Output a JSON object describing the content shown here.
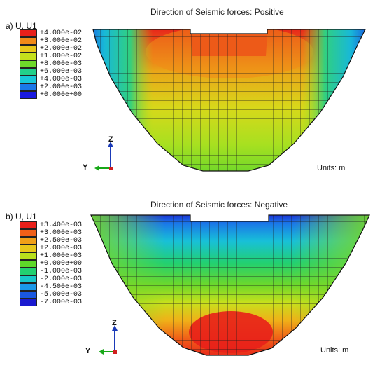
{
  "panels": [
    {
      "label": "a)  U, U1",
      "title": "Direction of Seismic forces: Positive",
      "units": "Units: m",
      "legend": [
        {
          "text": "+4.000e-02",
          "color": "#e8201a"
        },
        {
          "text": "+3.000e-02",
          "color": "#f08a18"
        },
        {
          "text": "+2.000e-02",
          "color": "#e8c81a"
        },
        {
          "text": "+1.000e-02",
          "color": "#c4e01c"
        },
        {
          "text": "+8.000e-03",
          "color": "#6ed82a"
        },
        {
          "text": "+6.000e-03",
          "color": "#22d08a"
        },
        {
          "text": "+4.000e-03",
          "color": "#18c8d8"
        },
        {
          "text": "+2.000e-03",
          "color": "#1a78e8"
        },
        {
          "text": "+0.000e+00",
          "color": "#1a1ae0"
        }
      ],
      "axes": {
        "z": "Z",
        "y": "Y"
      }
    },
    {
      "label": "b)  U, U1",
      "title": "Direction of Seismic forces: Negative",
      "units": "Units: m",
      "legend": [
        {
          "text": "+3.400e-03",
          "color": "#e8201a"
        },
        {
          "text": "+3.000e-03",
          "color": "#f06018"
        },
        {
          "text": "+2.500e-03",
          "color": "#f0a018"
        },
        {
          "text": "+2.000e-03",
          "color": "#e8c81a"
        },
        {
          "text": "+1.000e-03",
          "color": "#b8e01c"
        },
        {
          "text": "+0.000e+00",
          "color": "#5ed82a"
        },
        {
          "text": "-1.000e-03",
          "color": "#22d070"
        },
        {
          "text": "-2.000e-03",
          "color": "#18c8c8"
        },
        {
          "text": "-4.500e-03",
          "color": "#1a98e8"
        },
        {
          "text": "-5.000e-03",
          "color": "#1a58e0"
        },
        {
          "text": "-7.000e-03",
          "color": "#1a1ad0"
        }
      ],
      "axes": {
        "z": "Z",
        "y": "Y"
      }
    }
  ]
}
